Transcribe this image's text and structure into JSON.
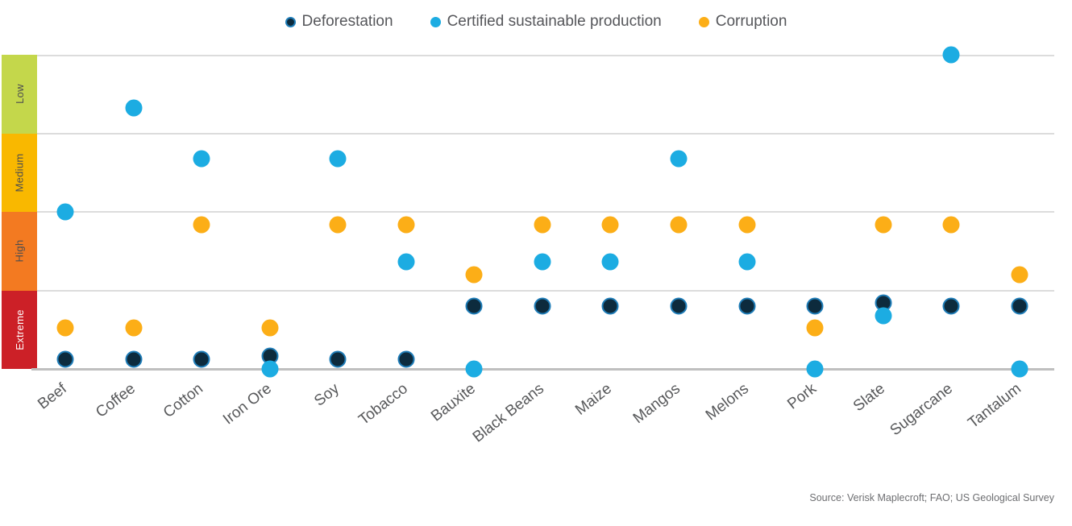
{
  "chart_data": {
    "type": "scatter",
    "title": "",
    "xlabel": "",
    "ylabel": "",
    "ylim": [
      0,
      10
    ],
    "y_tick_values": [
      0,
      2.5,
      5,
      7.5,
      10
    ],
    "grid": "horizontal",
    "legend_position": "top-center",
    "categories": [
      "Beef",
      "Coffee",
      "Cotton",
      "Iron Ore",
      "Soy",
      "Tobacco",
      "Bauxite",
      "Black Beans",
      "Maize",
      "Mangos",
      "Melons",
      "Pork",
      "Slate",
      "Sugarcane",
      "Tantalum"
    ],
    "series": [
      {
        "name": "Deforestation",
        "color": "#0d2b3d",
        "ring_color": "#1f7db8",
        "values": [
          0.3,
          0.3,
          0.3,
          0.4,
          0.3,
          0.3,
          2.0,
          2.0,
          2.0,
          2.0,
          2.0,
          2.0,
          2.1,
          2.0,
          2.0
        ]
      },
      {
        "name": "Certified sustainable production",
        "color": "#1cace2",
        "values": [
          5.0,
          8.3,
          6.7,
          0.0,
          6.7,
          3.4,
          0.0,
          3.4,
          3.4,
          6.7,
          3.4,
          0.0,
          1.7,
          10.0,
          0.0
        ]
      },
      {
        "name": "Corruption",
        "color": "#fcae17",
        "values": [
          1.3,
          1.3,
          4.6,
          1.3,
          4.6,
          4.6,
          3.0,
          4.6,
          4.6,
          4.6,
          4.6,
          1.3,
          4.6,
          4.6,
          3.0
        ]
      }
    ],
    "y_bands": [
      {
        "label": "Low",
        "range": [
          7.5,
          10
        ],
        "color": "#c4d74b",
        "text_color": "#4c4d4f"
      },
      {
        "label": "Medium",
        "range": [
          5,
          7.5
        ],
        "color": "#f9b800",
        "text_color": "#4c4d4f"
      },
      {
        "label": "High",
        "range": [
          2.5,
          5
        ],
        "color": "#f37a21",
        "text_color": "#4c4d4f"
      },
      {
        "label": "Extreme",
        "range": [
          0,
          2.5
        ],
        "color": "#cc2027",
        "text_color": "#ffffff"
      }
    ]
  },
  "source": {
    "text": "Source: Verisk Maplecroft; FAO; US Geological Survey"
  }
}
